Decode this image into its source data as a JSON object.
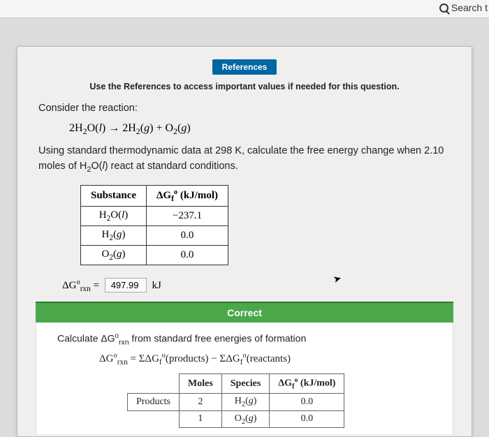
{
  "topbar": {
    "search_label": "Search t"
  },
  "references": {
    "button_label": "References",
    "note": "Use the References to access important values if needed for this question."
  },
  "problem": {
    "consider": "Consider the reaction:",
    "reaction_html": "2H<sub>2</sub>O(<i>l</i>) → 2H<sub>2</sub>(<i>g</i>) + O<sub>2</sub>(<i>g</i>)",
    "instruction_html": "Using standard thermodynamic data at 298 K, calculate the free energy change when 2.10 moles of H<sub>2</sub>O(<i>l</i>) react at standard conditions."
  },
  "table": {
    "headers": [
      "Substance",
      "ΔG<sub>f</sub><sup>o</sup> (kJ/mol)"
    ],
    "rows": [
      [
        "H<sub>2</sub>O(<i>l</i>)",
        "−237.1"
      ],
      [
        "H<sub>2</sub>(<i>g</i>)",
        "0.0"
      ],
      [
        "O<sub>2</sub>(<i>g</i>)",
        "0.0"
      ]
    ]
  },
  "answer": {
    "prefix_html": "ΔG<sup>o</sup><sub>rxn</sub> =",
    "value": "497.99",
    "unit": "kJ"
  },
  "feedback": {
    "correct_label": "Correct"
  },
  "solution": {
    "intro_html": "Calculate ΔG<sup>o</sup><sub>rxn</sub> from standard free energies of formation",
    "formula_html": "ΔG<sup>o</sup><sub>rxn</sub> = ΣΔG<sub>f</sub><sup>o</sup>(products) − ΣΔG<sub>f</sub><sup>o</sup>(reactants)",
    "table": {
      "headers": [
        "",
        "Moles",
        "Species",
        "ΔG<sub>f</sub><sup>o</sup> (kJ/mol)"
      ],
      "rows": [
        [
          "Products",
          "2",
          "H<sub>2</sub>(<i>g</i>)",
          "0.0"
        ],
        [
          "",
          "1",
          "O<sub>2</sub>(<i>g</i>)",
          "0.0"
        ]
      ]
    }
  }
}
